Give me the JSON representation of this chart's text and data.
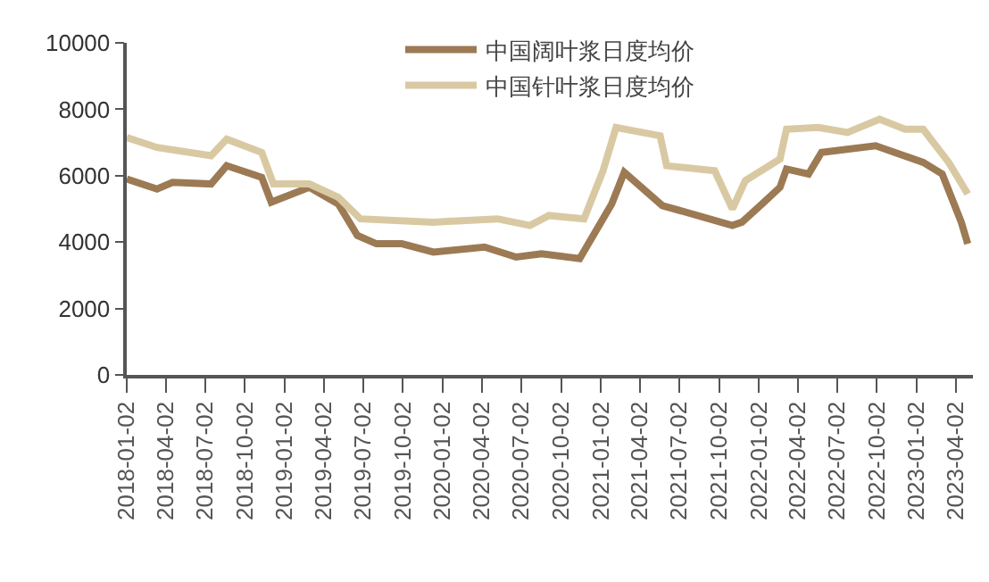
{
  "chart_data": {
    "type": "line",
    "series": [
      {
        "name": "中国阔叶浆日度均价",
        "color": "#9c7a54",
        "x": [
          "2018-01-02",
          "2018-03-13",
          "2018-04-18",
          "2018-07-16",
          "2018-08-21",
          "2018-11-10",
          "2018-12-02",
          "2019-02-28",
          "2019-05-06",
          "2019-06-19",
          "2019-08-02",
          "2019-09-30",
          "2019-12-12",
          "2020-04-08",
          "2020-06-20",
          "2020-08-18",
          "2020-11-14",
          "2021-01-27",
          "2021-02-25",
          "2021-05-24",
          "2021-11-02",
          "2021-11-24",
          "2022-01-14",
          "2022-02-20",
          "2022-03-07",
          "2022-04-27",
          "2022-05-27",
          "2022-09-29",
          "2023-01-17",
          "2023-03-02",
          "2023-04-15",
          "2023-04-30"
        ],
        "values": [
          5900,
          5600,
          5800,
          5750,
          6300,
          5950,
          5200,
          5650,
          5150,
          4200,
          3950,
          3950,
          3700,
          3850,
          3550,
          3650,
          3500,
          5150,
          6100,
          5100,
          4500,
          4600,
          5200,
          5650,
          6200,
          6050,
          6700,
          6900,
          6400,
          6050,
          4600,
          3950
        ]
      },
      {
        "name": "中国针叶浆日度均价",
        "color": "#d9c9a3",
        "x": [
          "2018-01-02",
          "2018-03-13",
          "2018-07-16",
          "2018-08-21",
          "2018-11-10",
          "2018-12-07",
          "2019-02-28",
          "2019-05-06",
          "2019-06-26",
          "2019-12-12",
          "2020-05-08",
          "2020-07-22",
          "2020-09-04",
          "2020-11-24",
          "2021-01-07",
          "2021-02-06",
          "2021-05-19",
          "2021-06-03",
          "2021-09-22",
          "2021-11-02",
          "2021-12-02",
          "2022-02-20",
          "2022-03-07",
          "2022-05-20",
          "2022-07-26",
          "2022-10-08",
          "2022-12-06",
          "2023-01-17",
          "2023-03-17",
          "2023-04-30"
        ],
        "values": [
          7150,
          6850,
          6600,
          7100,
          6700,
          5750,
          5750,
          5350,
          4700,
          4600,
          4700,
          4500,
          4800,
          4700,
          6150,
          7450,
          7200,
          6300,
          6150,
          5000,
          5850,
          6500,
          7400,
          7450,
          7300,
          7700,
          7400,
          7400,
          6400,
          5450
        ]
      }
    ],
    "xlim": [
      "2018-01-02",
      "2023-05-12"
    ],
    "xticks": [
      "2018-01-02",
      "2018-04-02",
      "2018-07-02",
      "2018-10-02",
      "2019-01-02",
      "2019-04-02",
      "2019-07-02",
      "2019-10-02",
      "2020-01-02",
      "2020-04-02",
      "2020-07-02",
      "2020-10-02",
      "2021-01-02",
      "2021-04-02",
      "2021-07-02",
      "2021-10-02",
      "2022-01-02",
      "2022-04-02",
      "2022-07-02",
      "2022-10-02",
      "2023-01-02",
      "2023-04-02"
    ],
    "ylim": [
      0,
      10000
    ],
    "yticks": [
      0,
      2000,
      4000,
      6000,
      8000,
      10000
    ],
    "legend": "top",
    "marker": "none",
    "line_style": "solid"
  }
}
